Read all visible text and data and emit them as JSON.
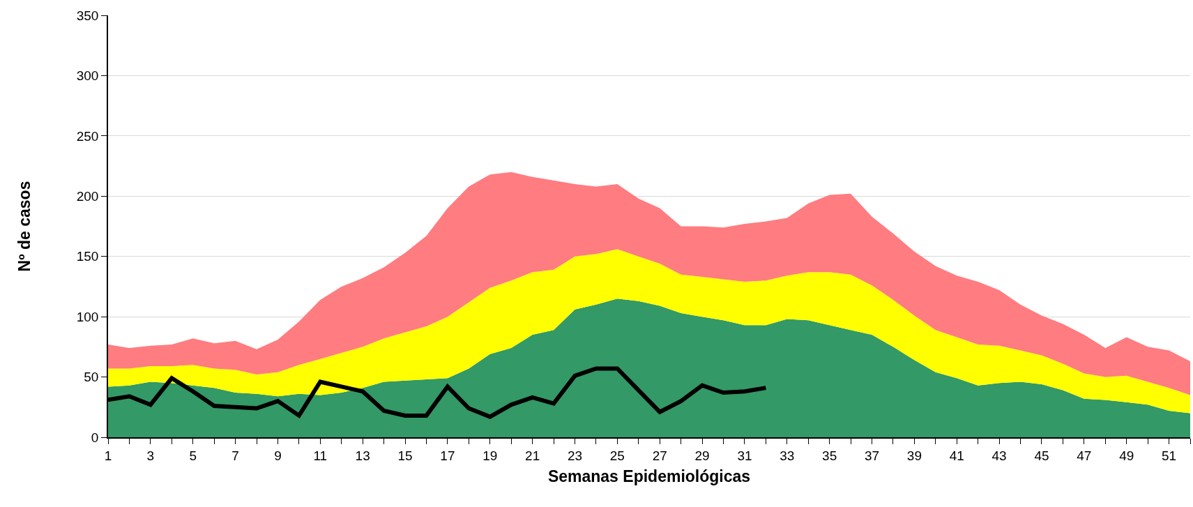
{
  "chart_data": {
    "type": "area",
    "xlabel": "Semanas Epidemiológicas",
    "ylabel": "Nº de casos",
    "x": [
      1,
      2,
      3,
      4,
      5,
      6,
      7,
      8,
      9,
      10,
      11,
      12,
      13,
      14,
      15,
      16,
      17,
      18,
      19,
      20,
      21,
      22,
      23,
      24,
      25,
      26,
      27,
      28,
      29,
      30,
      31,
      32,
      33,
      34,
      35,
      36,
      37,
      38,
      39,
      40,
      41,
      42,
      43,
      44,
      45,
      46,
      47,
      48,
      49,
      50,
      51,
      52
    ],
    "stacked": true,
    "series": [
      {
        "color": "#339966",
        "values": [
          42,
          43,
          46,
          45,
          43,
          41,
          37,
          36,
          34,
          36,
          35,
          37,
          41,
          46,
          47,
          48,
          49,
          57,
          69,
          74,
          85,
          89,
          106,
          110,
          115,
          113,
          109,
          103,
          100,
          97,
          93,
          93,
          98,
          97,
          93,
          89,
          85,
          75,
          64,
          54,
          49,
          43,
          45,
          46,
          44,
          39,
          32,
          31,
          29,
          27,
          22,
          20
        ]
      },
      {
        "color": "#ffff00",
        "values": [
          15,
          14,
          13,
          14,
          17,
          16,
          19,
          16,
          20,
          24,
          30,
          33,
          34,
          36,
          40,
          44,
          51,
          55,
          55,
          56,
          52,
          50,
          44,
          42,
          41,
          37,
          35,
          32,
          33,
          34,
          36,
          37,
          36,
          40,
          44,
          46,
          41,
          39,
          37,
          35,
          34,
          34,
          31,
          26,
          24,
          22,
          21,
          19,
          22,
          19,
          19,
          15
        ]
      },
      {
        "color": "#ff7c80",
        "values": [
          20,
          17,
          17,
          18,
          22,
          21,
          24,
          21,
          27,
          36,
          49,
          55,
          57,
          59,
          66,
          75,
          90,
          96,
          94,
          90,
          79,
          74,
          60,
          56,
          54,
          48,
          46,
          40,
          42,
          43,
          48,
          49,
          48,
          57,
          64,
          67,
          57,
          55,
          53,
          53,
          51,
          52,
          46,
          38,
          33,
          33,
          32,
          24,
          32,
          29,
          31,
          28
        ]
      },
      {
        "type": "line",
        "color": "#000000",
        "line_style": "solid",
        "marker": "none",
        "values": [
          31,
          34,
          27,
          49,
          38,
          26,
          25,
          24,
          30,
          18,
          46,
          42,
          38,
          22,
          18,
          18,
          42,
          24,
          17,
          27,
          33,
          28,
          51,
          57,
          57,
          39,
          21,
          30,
          43,
          37,
          38,
          41,
          null,
          null,
          null,
          null,
          null,
          null,
          null,
          null,
          null,
          null,
          null,
          null,
          null,
          null,
          null,
          null,
          null,
          null,
          null,
          null
        ]
      }
    ],
    "xlim": [
      1,
      52
    ],
    "xticks": [
      1,
      {
        "value": 2,
        "label": null
      },
      3,
      {
        "value": 4,
        "label": null
      },
      5,
      {
        "value": 6,
        "label": null
      },
      7,
      {
        "value": 8,
        "label": null
      },
      9,
      {
        "value": 10,
        "label": null
      },
      11,
      {
        "value": 12,
        "label": null
      },
      13,
      {
        "value": 14,
        "label": null
      },
      15,
      {
        "value": 16,
        "label": null
      },
      17,
      {
        "value": 18,
        "label": null
      },
      19,
      {
        "value": 20,
        "label": null
      },
      21,
      {
        "value": 22,
        "label": null
      },
      23,
      {
        "value": 24,
        "label": null
      },
      25,
      {
        "value": 26,
        "label": null
      },
      27,
      {
        "value": 28,
        "label": null
      },
      29,
      {
        "value": 30,
        "label": null
      },
      31,
      {
        "value": 32,
        "label": null
      },
      33,
      {
        "value": 34,
        "label": null
      },
      35,
      {
        "value": 36,
        "label": null
      },
      37,
      {
        "value": 38,
        "label": null
      },
      39,
      {
        "value": 40,
        "label": null
      },
      41,
      {
        "value": 42,
        "label": null
      },
      43,
      {
        "value": 44,
        "label": null
      },
      45,
      {
        "value": 46,
        "label": null
      },
      47,
      {
        "value": 48,
        "label": null
      },
      49,
      {
        "value": 50,
        "label": null
      },
      51,
      {
        "value": 52,
        "label": null
      }
    ],
    "ylim": [
      0,
      350
    ],
    "yticks": [
      0,
      50,
      100,
      150,
      200,
      250,
      300,
      350
    ],
    "grid": "y"
  }
}
